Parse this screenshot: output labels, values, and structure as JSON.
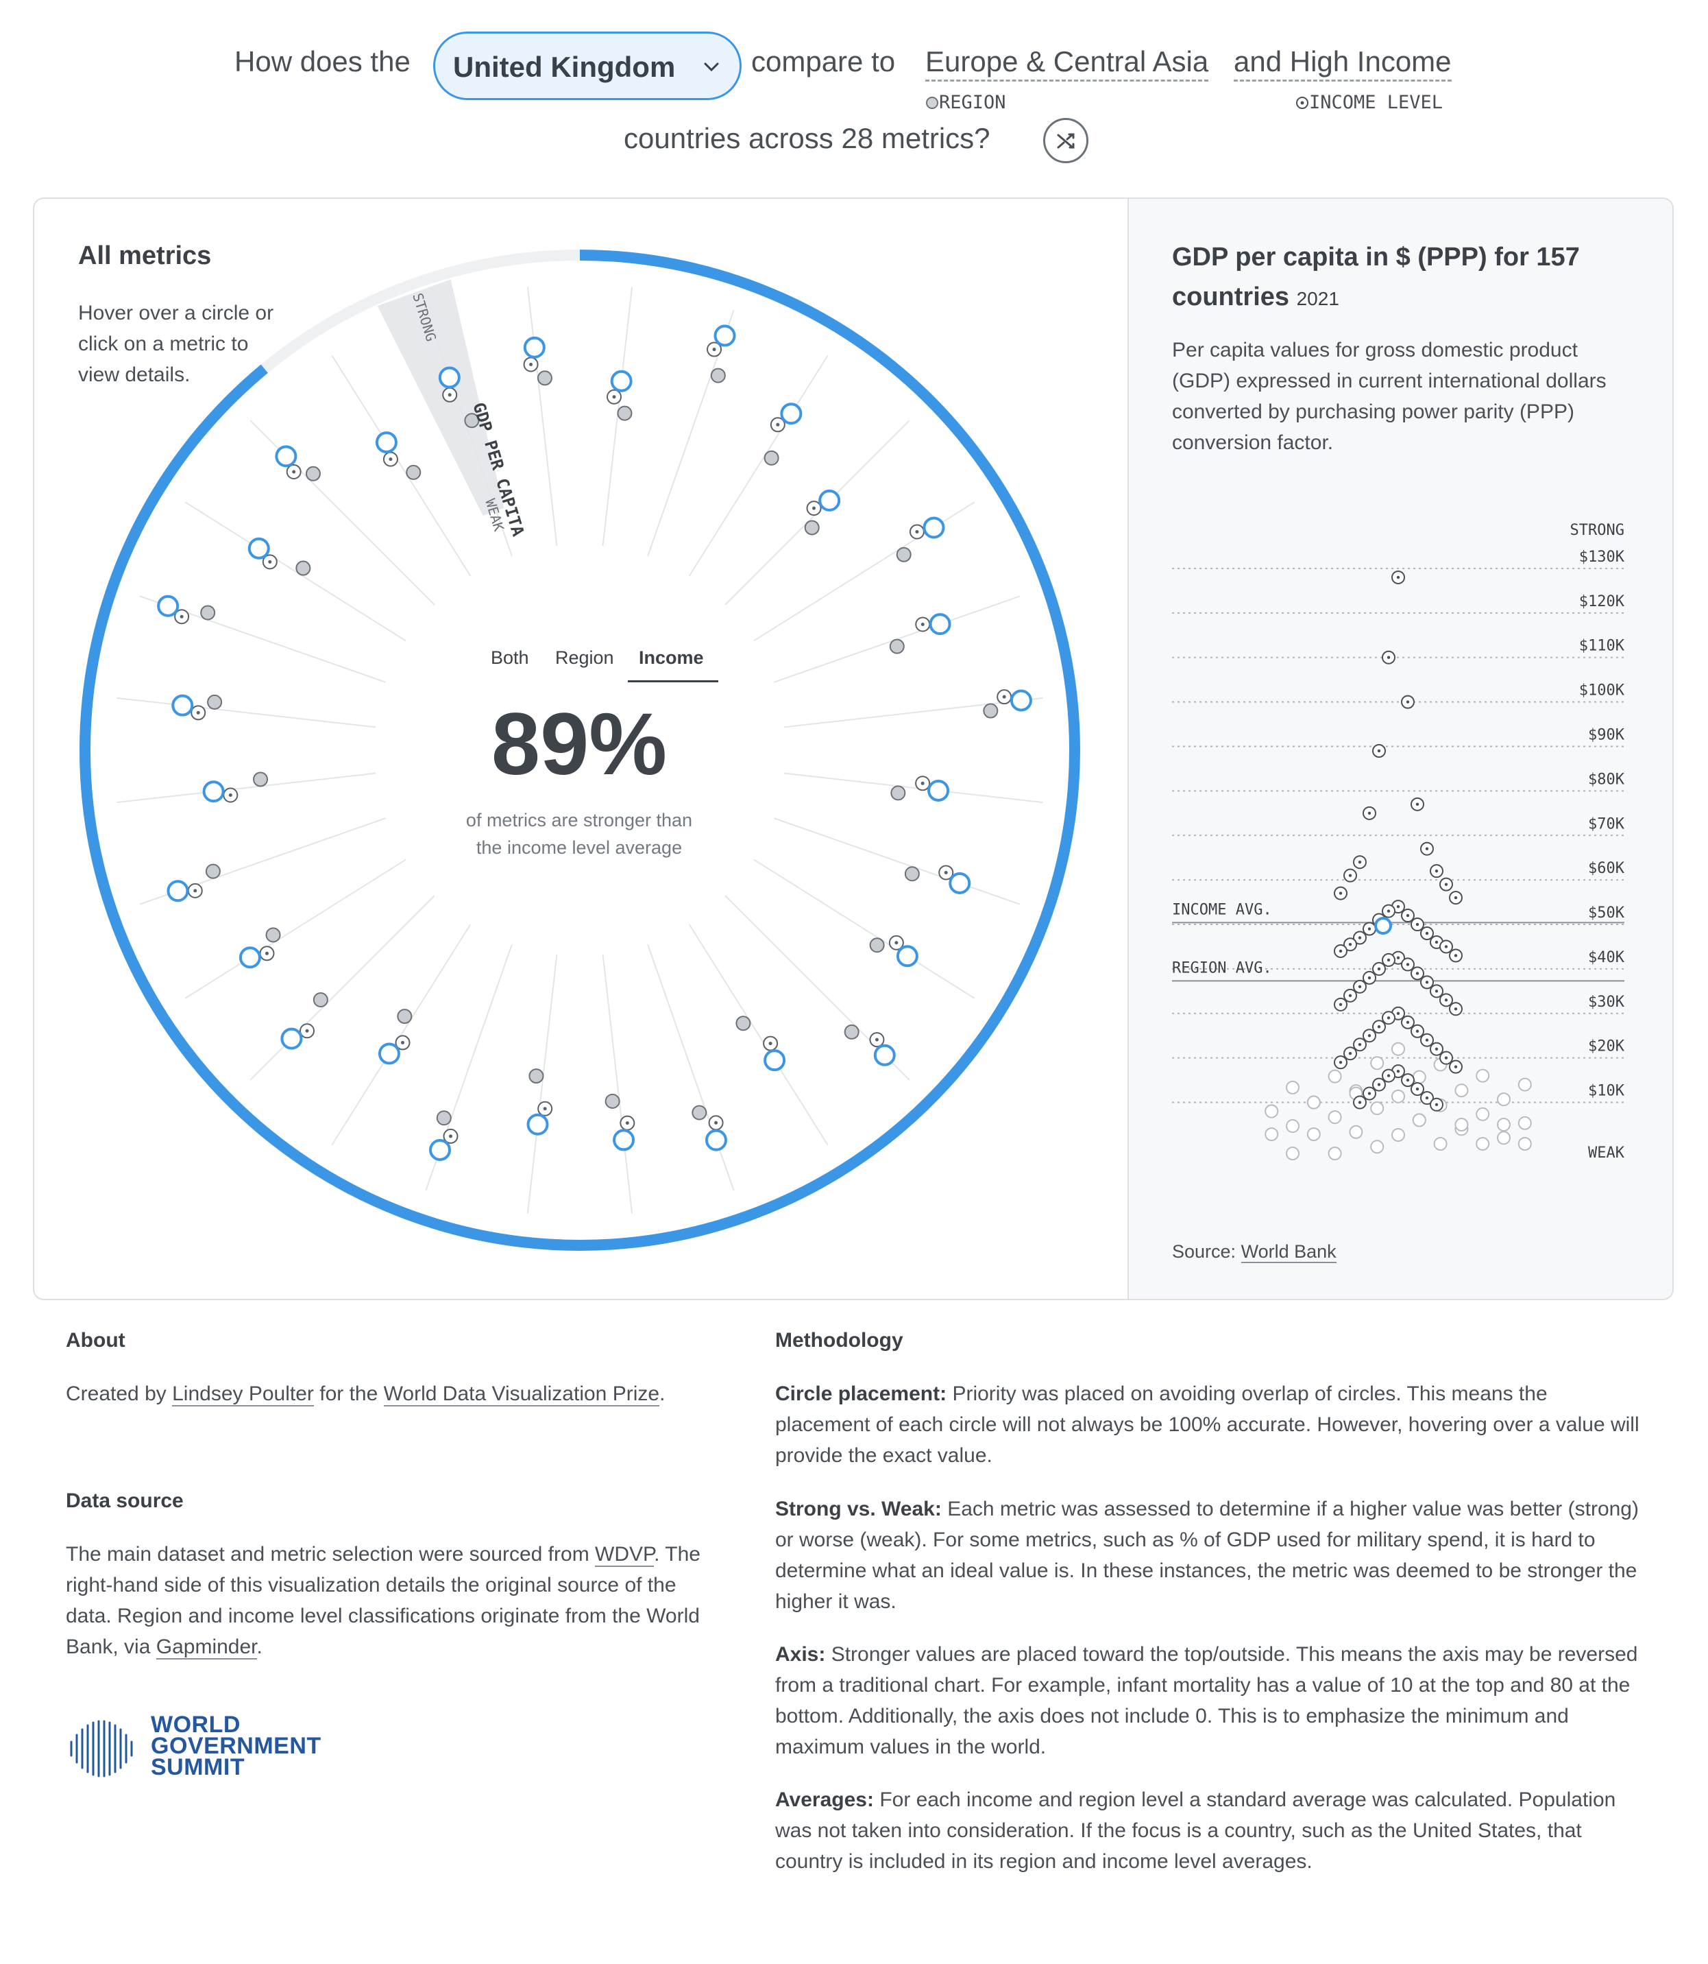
{
  "header": {
    "prefix": "How does the",
    "country": "United Kingdom",
    "compare": "compare to",
    "region": "Europe & Central Asia",
    "and_text": "and",
    "income_level": "High Income",
    "region_tag": "REGION",
    "income_tag": "INCOME LEVEL",
    "line2": "countries across 28 metrics?"
  },
  "left_panel": {
    "title": "All metrics",
    "hint": "Hover over a circle or click on a metric to view details.",
    "selected_metric": "GDP PER CAPITA",
    "strong_label": "STRONG",
    "weak_label": "WEAK",
    "tabs": [
      "Both",
      "Region",
      "Income"
    ],
    "active_tab": "Income",
    "percentage": "89%",
    "caption": "of metrics are stronger than the income level average"
  },
  "right_panel": {
    "title": "GDP per capita in $ (PPP) for 157 countries",
    "year": "2021",
    "description": "Per capita values for gross domestic product (GDP) expressed in current international dollars converted by purchasing power parity (PPP) conversion factor.",
    "source_label": "Source:",
    "source_link": "World Bank"
  },
  "about": {
    "heading": "About",
    "text_before": "Created by",
    "author": "Lindsey Poulter",
    "text_mid": "for the",
    "prize": "World Data Visualization Prize",
    "text_end": "."
  },
  "data_source": {
    "heading": "Data source",
    "text1": "The main dataset and metric selection were sourced from",
    "link1": "WDVP",
    "text2": ". The right-hand side of this visualization details the original source of the data. Region and income level classifications originate from the World Bank, via",
    "link2": "Gapminder",
    "text3": "."
  },
  "methodology": {
    "heading": "Methodology",
    "items": [
      {
        "label": "Circle placement:",
        "text": "Priority was placed on avoiding overlap of circles. This means the placement of each circle will not always be 100% accurate. However, hovering over a value will provide the exact value."
      },
      {
        "label": "Strong vs. Weak:",
        "text": "Each metric was assessed to determine if a higher value was better (strong) or worse (weak). For some metrics, such as % of GDP used for military spend, it is hard to determine what an ideal value is. In these instances, the metric was deemed to be stronger the higher it was."
      },
      {
        "label": "Axis:",
        "text": "Stronger values are placed toward the top/outside. This means the axis may be reversed from a traditional chart. For example, infant mortality has a value of 10 at the top and 80 at the bottom. Additionally, the axis does not include 0. This is to emphasize the minimum and maximum values in the world."
      },
      {
        "label": "Averages:",
        "text": "For each income and region level a standard average was calculated. Population was not taken into consideration. If the focus is a country, such as the United States, that country is included in its region and income level averages."
      }
    ]
  },
  "logo": {
    "line1": "WORLD",
    "line2": "GOVERNMENT",
    "line3": "SUMMIT"
  },
  "colors": {
    "accent": "#3c96e6",
    "accent_fill": "#e8f3fd",
    "muted_ring": "#eef0f2",
    "text": "#3c4148"
  },
  "chart_data": {
    "type": "scatter",
    "title": "GDP per capita in $ (PPP) for 157 countries",
    "strong_label": "STRONG",
    "weak_label": "WEAK",
    "y_ticks": [
      "$130K",
      "$120K",
      "$110K",
      "$100K",
      "$90K",
      "$80K",
      "$70K",
      "$60K",
      "$50K",
      "$40K",
      "$30K",
      "$20K",
      "$10K"
    ],
    "ylim": [
      5000,
      132000
    ],
    "reference_lines": [
      {
        "label": "INCOME AVG.",
        "value": 50400
      },
      {
        "label": "REGION AVG.",
        "value": 37300
      }
    ],
    "highlight": {
      "name": "United Kingdom",
      "value": 49700
    },
    "income_group_values": [
      128000,
      110000,
      100000,
      89000,
      77000,
      75000,
      67000,
      64000,
      62000,
      61000,
      59000,
      57000,
      56000,
      54000,
      53000,
      52000,
      51000,
      50000,
      49000,
      48000,
      47000,
      46000,
      45500,
      45000,
      44000,
      43000,
      42500,
      42000,
      41000,
      40000,
      39000,
      38000,
      37000,
      36000,
      35000,
      34000,
      33000,
      32000,
      31000,
      30000,
      29000,
      28000,
      27000,
      26000,
      25000,
      24000,
      23000,
      22000,
      21000,
      20000,
      19000,
      18000,
      17000,
      16000,
      15000,
      14000,
      13000,
      12000,
      11000,
      10000,
      9500
    ],
    "other_values": [
      22000,
      21000,
      20000,
      19000,
      18500,
      18000,
      17000,
      16500,
      16000,
      15500,
      15000,
      14500,
      14000,
      13500,
      13000,
      12500,
      12000,
      11500,
      11000,
      10500,
      10000,
      9500,
      9000,
      8500,
      8000,
      7500,
      7000,
      6500,
      6000,
      5500,
      5000,
      4500,
      4000,
      3500,
      3000,
      2500,
      2000,
      1500,
      1000
    ],
    "radial_metrics_count": 28,
    "radial_share_stronger_than_income_avg": 0.89
  }
}
